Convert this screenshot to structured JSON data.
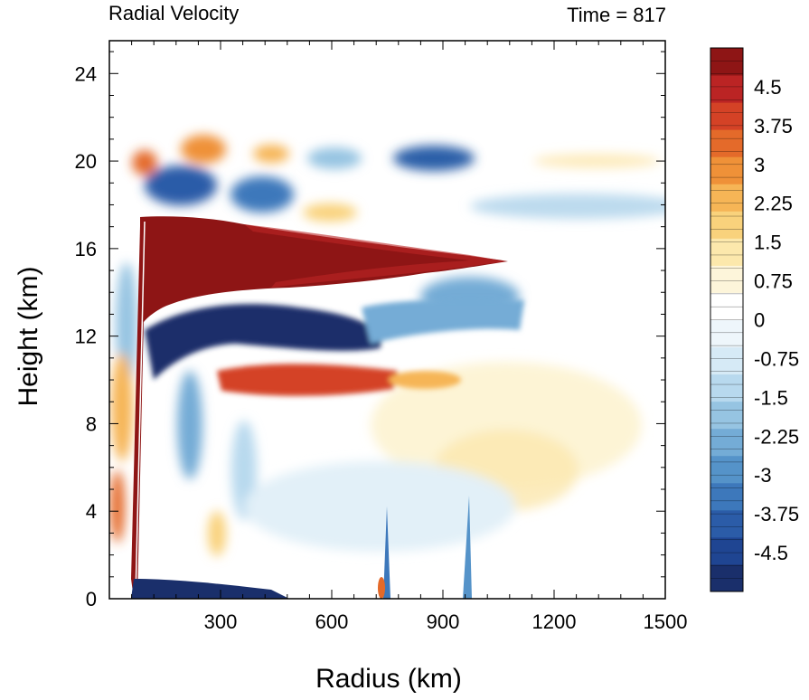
{
  "chart_data": {
    "type": "heatmap",
    "title_left": "Radial Velocity",
    "title_right": "Time = 817",
    "xlabel": "Radius (km)",
    "ylabel": "Height (km)",
    "xlim": [
      0,
      1500
    ],
    "ylim": [
      0,
      25.5
    ],
    "xticks": [
      300,
      600,
      900,
      1200,
      1500
    ],
    "yticks": [
      0,
      4,
      8,
      12,
      16,
      20,
      24
    ],
    "colorbar": {
      "min": -5.25,
      "max": 5.25,
      "labels": [
        "4.5",
        "3.75",
        "3",
        "2.25",
        "1.5",
        "0.75",
        "0",
        "-0.75",
        "-1.5",
        "-2.25",
        "-3",
        "-3.75",
        "-4.5"
      ],
      "label_values": [
        4.5,
        3.75,
        3,
        2.25,
        1.5,
        0.75,
        0,
        -0.75,
        -1.5,
        -2.25,
        -3,
        -3.75,
        -4.5
      ],
      "colors": [
        "#1a2f6b",
        "#1f4592",
        "#2b5ca8",
        "#3d78bb",
        "#5593c9",
        "#74acd6",
        "#96c4e2",
        "#b8d9ee",
        "#d6eaf6",
        "#eef6fb",
        "#ffffff",
        "#fdf5da",
        "#fce8ac",
        "#f9d27c",
        "#f6b556",
        "#ef9138",
        "#e46a2a",
        "#d44226",
        "#bb2424",
        "#8e1515"
      ]
    },
    "features": [
      {
        "kind": "outflow",
        "r": [
          70,
          1080
        ],
        "z": [
          13.5,
          17.3
        ],
        "value": 6
      },
      {
        "kind": "inflow",
        "r": [
          80,
          600
        ],
        "z": [
          10.8,
          13.0
        ],
        "value": -5
      },
      {
        "kind": "outflow",
        "r": [
          300,
          720
        ],
        "z": [
          9.0,
          10.5
        ],
        "value": 4
      },
      {
        "kind": "inflow",
        "r": [
          600,
          1100
        ],
        "z": [
          12.5,
          14.8
        ],
        "value": -2.5
      },
      {
        "kind": "inflow",
        "r": [
          1000,
          1500
        ],
        "z": [
          17.0,
          18.5
        ],
        "value": -1.5
      },
      {
        "kind": "outflow",
        "r": [
          900,
          1300
        ],
        "z": [
          4.8,
          10.0
        ],
        "value": 1.5
      },
      {
        "kind": "eyewall",
        "r": [
          60,
          85
        ],
        "z": [
          0,
          17.5
        ],
        "value": 6
      },
      {
        "kind": "surface-inflow",
        "r": [
          60,
          300
        ],
        "z": [
          0,
          1.2
        ],
        "value": -6
      }
    ]
  }
}
